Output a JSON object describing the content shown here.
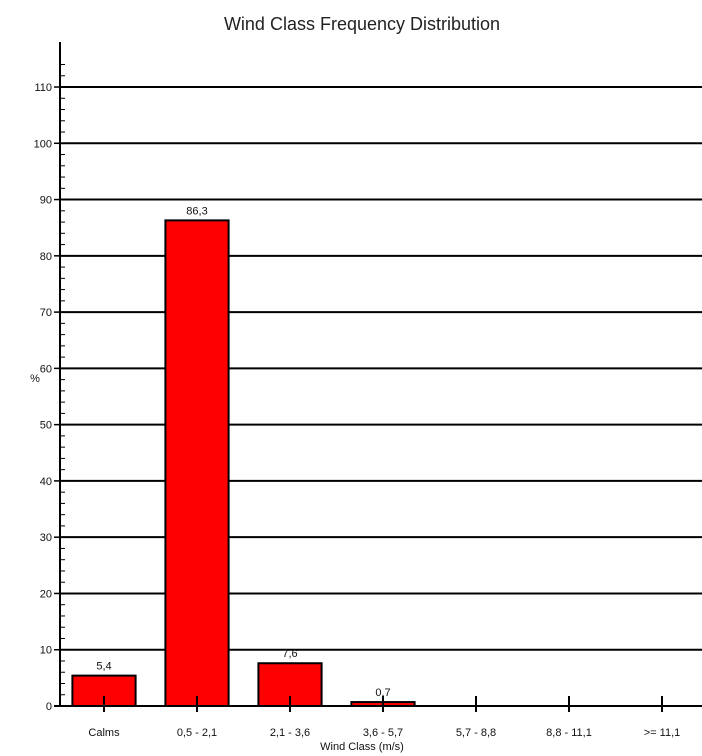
{
  "chart_data": {
    "type": "bar",
    "title": "Wind Class Frequency Distribution",
    "xlabel": "Wind Class (m/s)",
    "ylabel": "%",
    "categories": [
      "Calms",
      "0,5 - 2,1",
      "2,1 - 3,6",
      "3,6 - 5,7",
      "5,7 - 8,8",
      "8,8 - 11,1",
      ">= 11,1"
    ],
    "values": [
      5.4,
      86.3,
      7.6,
      0.7,
      0,
      0,
      0
    ],
    "data_labels": [
      "5,4",
      "86,3",
      "7,6",
      "0,7",
      "",
      "",
      ""
    ],
    "yticks": [
      0,
      10,
      20,
      30,
      40,
      50,
      60,
      70,
      80,
      90,
      100,
      110
    ],
    "ylim": [
      0,
      118
    ],
    "grid": true,
    "bar_color": "#ff0000",
    "bar_edge_color": "#000000",
    "grid_color": "#000000"
  }
}
